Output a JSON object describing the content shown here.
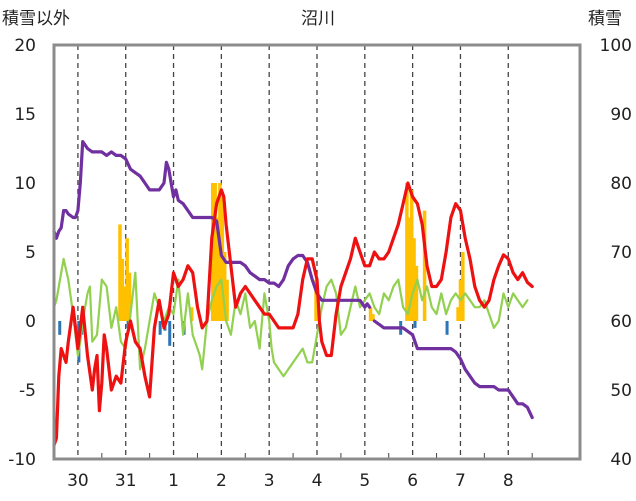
{
  "chart_data": {
    "type": "line",
    "title": "沼川",
    "ylabel_left": "積雪以外",
    "ylabel_right": "積雪",
    "ylim_left": [
      -10,
      20
    ],
    "ylim_right": [
      40,
      100
    ],
    "yticks_left": [
      "-10",
      "-5",
      "0",
      "5",
      "10",
      "15",
      "20"
    ],
    "yticks_right": [
      "40",
      "50",
      "60",
      "70",
      "80",
      "90",
      "100"
    ],
    "x_range": [
      -0.5,
      10.5
    ],
    "day_ticks": [
      {
        "x": 0,
        "label": "30"
      },
      {
        "x": 1,
        "label": "31"
      },
      {
        "x": 2,
        "label": "1"
      },
      {
        "x": 3,
        "label": "2"
      },
      {
        "x": 4,
        "label": "3"
      },
      {
        "x": 5,
        "label": "4"
      },
      {
        "x": 6,
        "label": "5"
      },
      {
        "x": 7,
        "label": "6"
      },
      {
        "x": 8,
        "label": "7"
      },
      {
        "x": 9,
        "label": "8"
      }
    ],
    "colors": {
      "red": "#ee1111",
      "green": "#92d050",
      "purple": "#7030a0",
      "orange": "#ffc000",
      "blue": "#2e75b6",
      "grid": "#444444",
      "frame": "#8c8c8c"
    },
    "bars_orange": [
      {
        "x": 0.88,
        "v": 7.0
      },
      {
        "x": 0.93,
        "v": 4.5
      },
      {
        "x": 0.98,
        "v": 2.5
      },
      {
        "x": 1.03,
        "v": 6.0
      },
      {
        "x": 1.08,
        "v": 3.5
      },
      {
        "x": 2.38,
        "v": 1.0
      },
      {
        "x": 2.82,
        "v": 10.0
      },
      {
        "x": 2.87,
        "v": 10.0
      },
      {
        "x": 2.92,
        "v": 7.5
      },
      {
        "x": 2.97,
        "v": 10.0
      },
      {
        "x": 3.02,
        "v": 9.0
      },
      {
        "x": 3.07,
        "v": 5.0
      },
      {
        "x": 3.12,
        "v": 3.0
      },
      {
        "x": 4.98,
        "v": 3.0
      },
      {
        "x": 6.12,
        "v": 1.0
      },
      {
        "x": 6.17,
        "v": 0.5
      },
      {
        "x": 6.88,
        "v": 10.0
      },
      {
        "x": 6.93,
        "v": 7.5
      },
      {
        "x": 6.98,
        "v": 9.5
      },
      {
        "x": 7.03,
        "v": 6.0
      },
      {
        "x": 7.08,
        "v": 4.0
      },
      {
        "x": 7.25,
        "v": 8.0
      },
      {
        "x": 7.95,
        "v": 1.0
      },
      {
        "x": 8.0,
        "v": 3.0
      },
      {
        "x": 8.05,
        "v": 5.0
      }
    ],
    "bars_blue": [
      {
        "x": -0.38,
        "v": -1.0
      },
      {
        "x": 0.02,
        "v": -3.0
      },
      {
        "x": 0.08,
        "v": -1.0
      },
      {
        "x": 1.05,
        "v": -0.5
      },
      {
        "x": 1.72,
        "v": -1.0
      },
      {
        "x": 1.82,
        "v": -0.7
      },
      {
        "x": 1.92,
        "v": -1.8
      },
      {
        "x": 2.22,
        "v": -1.0
      },
      {
        "x": 6.75,
        "v": -1.0
      },
      {
        "x": 7.05,
        "v": -0.5
      },
      {
        "x": 7.72,
        "v": -1.0
      }
    ],
    "series": [
      {
        "color": "red",
        "axis": "left",
        "x": [
          -0.5,
          -0.45,
          -0.4,
          -0.35,
          -0.3,
          -0.25,
          -0.2,
          -0.1,
          0.0,
          0.05,
          0.1,
          0.2,
          0.3,
          0.35,
          0.4,
          0.45,
          0.5,
          0.55,
          0.6,
          0.7,
          0.8,
          0.9,
          1.0,
          1.1,
          1.2,
          1.3,
          1.4,
          1.5,
          1.6,
          1.7,
          1.8,
          1.9,
          2.0,
          2.1,
          2.2,
          2.3,
          2.4,
          2.5,
          2.6,
          2.7,
          2.8,
          2.9,
          3.0,
          3.05,
          3.1,
          3.2,
          3.3,
          3.4,
          3.5,
          3.6,
          3.7,
          3.8,
          3.9,
          4.0,
          4.1,
          4.2,
          4.3,
          4.4,
          4.5,
          4.6,
          4.7,
          4.8,
          4.9,
          5.0,
          5.05,
          5.1,
          5.2,
          5.3,
          5.4,
          5.5,
          5.6,
          5.7,
          5.8,
          5.9,
          6.0,
          6.1,
          6.2,
          6.3,
          6.4,
          6.5,
          6.6,
          6.7,
          6.8,
          6.9,
          7.0,
          7.1,
          7.2,
          7.3,
          7.4,
          7.5,
          7.6,
          7.7,
          7.8,
          7.9,
          8.0,
          8.1,
          8.2,
          8.3,
          8.4,
          8.5,
          8.6,
          8.7,
          8.8,
          8.9,
          9.0,
          9.1,
          9.2,
          9.3,
          9.4,
          9.5
        ],
        "y": [
          -9.0,
          -8.5,
          -4.0,
          -2.0,
          -2.5,
          -3.0,
          -1.5,
          1.0,
          -2.0,
          -0.5,
          1.0,
          -2.5,
          -5.0,
          -3.5,
          -2.5,
          -6.5,
          -4.5,
          -1.0,
          -2.0,
          -5.0,
          -4.0,
          -4.5,
          -1.5,
          0.0,
          -1.5,
          -2.0,
          -4.0,
          -5.5,
          -0.5,
          1.5,
          -0.5,
          0.5,
          3.5,
          2.5,
          3.0,
          4.0,
          3.5,
          1.0,
          -0.5,
          0.0,
          6.0,
          8.5,
          9.5,
          9.0,
          7.0,
          4.0,
          1.0,
          2.0,
          2.5,
          2.0,
          1.5,
          1.0,
          0.5,
          0.5,
          0.0,
          -0.5,
          -0.5,
          -0.5,
          -0.5,
          0.5,
          3.0,
          4.5,
          4.5,
          3.0,
          0.0,
          -1.5,
          -2.5,
          -2.5,
          0.5,
          2.5,
          3.5,
          4.5,
          6.0,
          5.0,
          4.0,
          4.0,
          5.0,
          4.5,
          4.5,
          5.0,
          6.0,
          7.0,
          8.5,
          10.0,
          9.0,
          8.5,
          7.0,
          4.0,
          2.5,
          2.5,
          3.0,
          5.0,
          7.5,
          8.5,
          8.0,
          6.0,
          4.5,
          2.5,
          1.5,
          1.0,
          1.5,
          3.0,
          4.0,
          4.8,
          4.5,
          3.5,
          3.0,
          3.5,
          2.8,
          2.5
        ]
      },
      {
        "color": "green",
        "axis": "left",
        "x": [
          -0.5,
          -0.45,
          -0.4,
          -0.3,
          -0.2,
          -0.1,
          0.0,
          0.05,
          0.1,
          0.2,
          0.25,
          0.3,
          0.4,
          0.5,
          0.6,
          0.7,
          0.8,
          0.9,
          1.0,
          1.1,
          1.2,
          1.3,
          1.4,
          1.5,
          1.6,
          1.7,
          1.8,
          1.9,
          2.0,
          2.1,
          2.2,
          2.3,
          2.4,
          2.5,
          2.55,
          2.6,
          2.7,
          2.8,
          2.9,
          3.0,
          3.1,
          3.2,
          3.3,
          3.4,
          3.5,
          3.6,
          3.7,
          3.8,
          3.9,
          4.0,
          4.05,
          4.1,
          4.2,
          4.3,
          4.4,
          4.5,
          4.6,
          4.7,
          4.8,
          4.9,
          5.0,
          5.05,
          5.1,
          5.2,
          5.3,
          5.4,
          5.5,
          5.6,
          5.7,
          5.8,
          5.9,
          6.0,
          6.1,
          6.2,
          6.3,
          6.4,
          6.5,
          6.6,
          6.7,
          6.8,
          6.9,
          7.0,
          7.1,
          7.2,
          7.3,
          7.4,
          7.5,
          7.6,
          7.7,
          7.8,
          7.9,
          8.0,
          8.1,
          8.2,
          8.3,
          8.4,
          8.5,
          8.6,
          8.7,
          8.8,
          8.9,
          9.0,
          9.1,
          9.2,
          9.3,
          9.4
        ],
        "y": [
          1.0,
          1.5,
          2.5,
          4.5,
          3.0,
          0.5,
          -2.5,
          -1.5,
          0.0,
          2.0,
          2.5,
          -1.5,
          -1.0,
          3.0,
          2.5,
          -0.5,
          1.0,
          -1.5,
          -2.0,
          0.5,
          3.5,
          -3.5,
          -2.0,
          0.0,
          2.0,
          1.0,
          0.0,
          1.0,
          0.5,
          3.0,
          -1.0,
          2.0,
          -1.0,
          -2.0,
          -2.5,
          -3.5,
          0.0,
          1.5,
          2.5,
          3.0,
          0.0,
          -1.0,
          1.5,
          0.5,
          2.0,
          -0.5,
          0.0,
          -2.0,
          2.0,
          0.0,
          -2.0,
          -3.0,
          -3.5,
          -4.0,
          -3.5,
          -3.0,
          -2.5,
          -2.0,
          -3.0,
          -3.0,
          -1.0,
          0.0,
          1.0,
          2.5,
          3.0,
          2.0,
          -1.0,
          -0.5,
          1.0,
          2.5,
          1.0,
          1.5,
          2.0,
          1.0,
          0.5,
          2.0,
          1.5,
          2.5,
          3.0,
          1.0,
          0.5,
          2.0,
          3.0,
          1.5,
          2.5,
          1.0,
          0.5,
          2.0,
          0.5,
          1.5,
          2.0,
          1.5,
          2.0,
          1.5,
          1.0,
          1.0,
          1.5,
          0.5,
          -0.5,
          0.0,
          2.0,
          1.0,
          2.0,
          1.5,
          1.0,
          1.5
        ]
      },
      {
        "color": "purple",
        "axis": "right",
        "x": [
          -0.5,
          -0.45,
          -0.4,
          -0.35,
          -0.3,
          -0.25,
          -0.2,
          -0.1,
          -0.05,
          0.0,
          0.05,
          0.1,
          0.2,
          0.3,
          0.4,
          0.5,
          0.6,
          0.7,
          0.8,
          0.9,
          1.0,
          1.1,
          1.2,
          1.3,
          1.4,
          1.5,
          1.6,
          1.7,
          1.8,
          1.85,
          1.9,
          2.0,
          2.05,
          2.1,
          2.2,
          2.3,
          2.4,
          2.5,
          2.6,
          2.7,
          2.8,
          2.9,
          3.0,
          3.1,
          3.2,
          3.3,
          3.4,
          3.5,
          3.6,
          3.7,
          3.8,
          3.9,
          4.0,
          4.1,
          4.2,
          4.3,
          4.4,
          4.5,
          4.6,
          4.7,
          4.8,
          4.9,
          5.0,
          5.1,
          5.2,
          5.3,
          5.4,
          5.5,
          5.6,
          5.7,
          5.8,
          5.9,
          6.0,
          6.05,
          6.1
        ],
        "y": [
          73.0,
          72.0,
          73.0,
          73.5,
          76.0,
          76.0,
          75.5,
          75.0,
          75.0,
          76.0,
          80.0,
          86.0,
          85.0,
          84.5,
          84.5,
          84.5,
          84.0,
          84.5,
          84.0,
          84.0,
          83.5,
          82.0,
          81.5,
          81.0,
          80.0,
          79.0,
          79.0,
          79.0,
          80.0,
          83.0,
          82.0,
          78.0,
          79.0,
          77.5,
          77.0,
          76.0,
          75.0,
          75.0,
          75.0,
          75.0,
          75.0,
          74.5,
          69.5,
          68.5,
          68.5,
          68.5,
          68.5,
          68.0,
          67.0,
          66.5,
          66.0,
          66.0,
          65.5,
          65.5,
          65.0,
          66.0,
          68.0,
          69.0,
          69.5,
          69.5,
          68.5,
          66.0,
          64.0,
          63.0,
          63.0,
          63.0,
          63.0,
          63.0,
          63.0,
          63.0,
          63.0,
          63.0,
          62.0,
          62.5,
          62.0
        ]
      },
      {
        "color": "purple",
        "axis": "right",
        "x": [
          6.2,
          6.3,
          6.4,
          6.5,
          6.6,
          6.7,
          6.8,
          6.9,
          7.0,
          7.1,
          7.2,
          7.3,
          7.4,
          7.5,
          7.6,
          7.7,
          7.8,
          7.9,
          8.0,
          8.1,
          8.2,
          8.3,
          8.4,
          8.5,
          8.6,
          8.7,
          8.8,
          8.9,
          9.0,
          9.1,
          9.2,
          9.3,
          9.4,
          9.5
        ],
        "y": [
          60.0,
          59.5,
          59.0,
          59.0,
          59.0,
          59.0,
          59.0,
          58.5,
          58.0,
          56.0,
          56.0,
          56.0,
          56.0,
          56.0,
          56.0,
          56.0,
          56.0,
          55.5,
          54.5,
          53.0,
          52.0,
          51.0,
          50.5,
          50.5,
          50.5,
          50.5,
          50.0,
          50.0,
          50.0,
          49.0,
          48.0,
          48.0,
          47.5,
          46.0
        ]
      }
    ]
  }
}
